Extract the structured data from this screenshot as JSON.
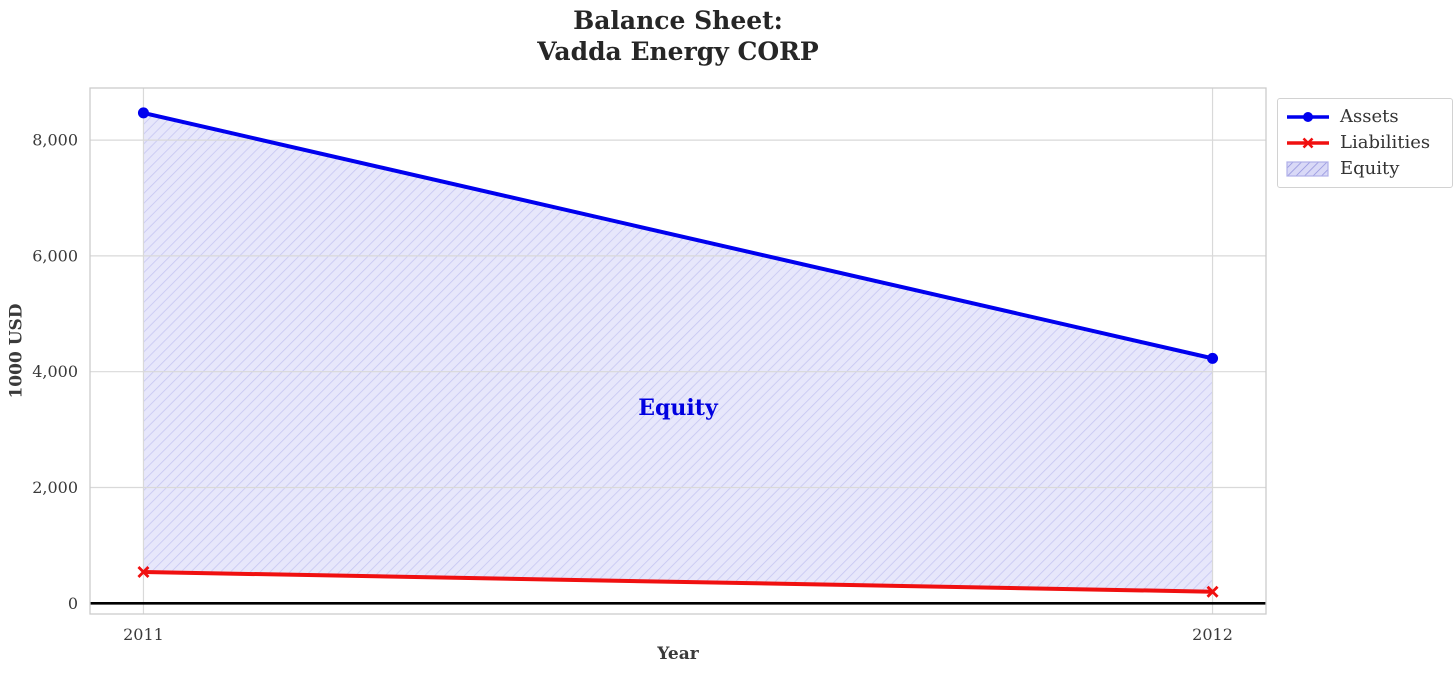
{
  "chart_data": {
    "type": "line",
    "title": "Balance Sheet:\nVadda Energy CORP",
    "title_lines": [
      "Balance Sheet:",
      "Vadda Energy CORP"
    ],
    "xlabel": "Year",
    "ylabel": "1000 USD",
    "x": [
      2011,
      2012
    ],
    "xtick_labels": [
      "2011",
      "2012"
    ],
    "yticks": [
      0,
      2000,
      4000,
      6000,
      8000
    ],
    "ytick_labels": [
      "0",
      "2,000",
      "4,000",
      "6,000",
      "8,000"
    ],
    "xlim": [
      2010.95,
      2012.05
    ],
    "ylim": [
      -185,
      8900
    ],
    "grid": true,
    "series": [
      {
        "name": "Assets",
        "values": [
          8470,
          4230
        ],
        "color": "#0000ee",
        "marker": "circle"
      },
      {
        "name": "Liabilities",
        "values": [
          540,
          200
        ],
        "color": "#f01010",
        "marker": "x"
      }
    ],
    "fill_between": {
      "label": "Equity",
      "between": [
        "Assets",
        "Liabilities"
      ],
      "facecolor": "#e7e7fb",
      "hatch_color": "#c6c6f2",
      "annotation": {
        "text": "Equity",
        "color": "#0000e0",
        "x": 2011.5,
        "y": 3380
      }
    },
    "zero_line": {
      "y": 0,
      "color": "#000000"
    },
    "legend": {
      "position": "upper-right-outside",
      "items": [
        {
          "label": "Assets",
          "glyph": "line-circle",
          "color": "#0000ee"
        },
        {
          "label": "Liabilities",
          "glyph": "line-x",
          "color": "#f01010"
        },
        {
          "label": "Equity",
          "glyph": "hatch-patch",
          "facecolor": "#d9d9f7",
          "hatch_color": "#8f8fdc",
          "border": "#b0b0e8"
        }
      ]
    },
    "colors": {
      "grid": "#d9d9d9",
      "spine": "#cccccc",
      "tick_text": "#3a3a3a",
      "title_text": "#262626",
      "axis_label_text": "#3a3a3a"
    }
  }
}
